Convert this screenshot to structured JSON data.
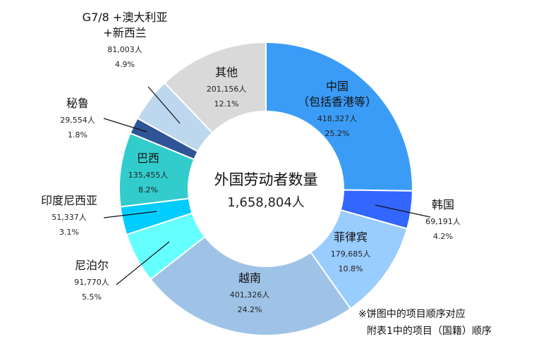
{
  "chart_data": {
    "type": "pie",
    "center_title": "外国劳动者数量",
    "total": "1,658,804人",
    "note_lines": [
      "※饼图中的项目顺序对应",
      "附表1中的项目（国籍）顺序"
    ],
    "slices": [
      {
        "name_lines": [
          "中国",
          "（包括香港等）"
        ],
        "value": 418327,
        "value_label": "418,327人",
        "percent": "25.2%",
        "color": "#3a9cf7"
      },
      {
        "name_lines": [
          "韩国"
        ],
        "value": 69191,
        "value_label": "69,191人",
        "percent": "4.2%",
        "color": "#3366ff"
      },
      {
        "name_lines": [
          "菲律宾"
        ],
        "value": 179685,
        "value_label": "179,685人",
        "percent": "10.8%",
        "color": "#99ccff"
      },
      {
        "name_lines": [
          "越南"
        ],
        "value": 401326,
        "value_label": "401,326人",
        "percent": "24.2%",
        "color": "#9fc3e7"
      },
      {
        "name_lines": [
          "尼泊尔"
        ],
        "value": 91770,
        "value_label": "91,770人",
        "percent": "5.5%",
        "color": "#66ffff"
      },
      {
        "name_lines": [
          "印度尼西亚"
        ],
        "value": 51337,
        "value_label": "51,337人",
        "percent": "3.1%",
        "color": "#00ccff"
      },
      {
        "name_lines": [
          "巴西"
        ],
        "value": 135455,
        "value_label": "135,455人",
        "percent": "8.2%",
        "color": "#33cccc"
      },
      {
        "name_lines": [
          "秘鲁"
        ],
        "value": 29554,
        "value_label": "29,554人",
        "percent": "1.8%",
        "color": "#2f5597"
      },
      {
        "name_lines": [
          "G7/8 +澳大利亚",
          "+新西兰"
        ],
        "value": 81003,
        "value_label": "81,003人",
        "percent": "4.9%",
        "color": "#bdd7ee"
      },
      {
        "name_lines": [
          "其他"
        ],
        "value": 201156,
        "value_label": "201,156人",
        "percent": "12.1%",
        "color": "#d9d9d9"
      }
    ]
  }
}
